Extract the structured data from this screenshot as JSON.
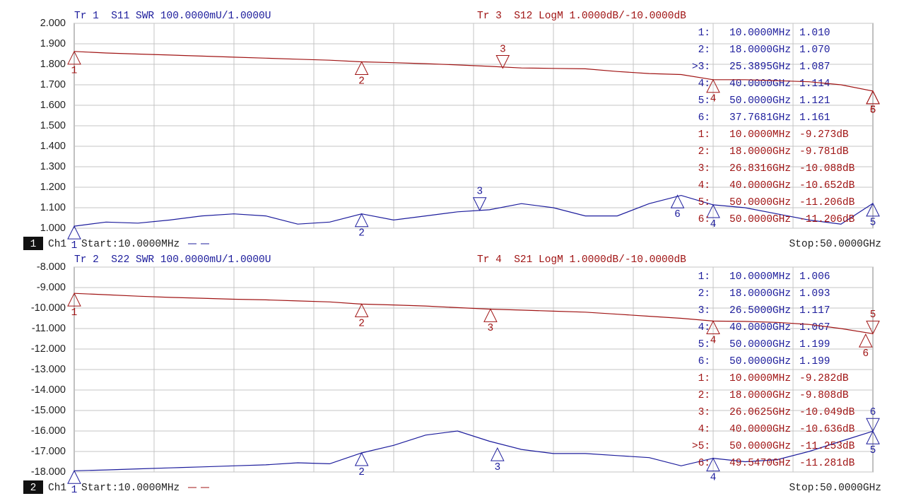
{
  "chart_data": [
    {
      "type": "line",
      "xlim": [
        0.01,
        50
      ],
      "ylim": [
        1,
        2
      ],
      "yticks": [
        {
          "value": 1,
          "label": "1.000"
        },
        {
          "value": 1.1,
          "label": "1.100"
        },
        {
          "value": 1.2,
          "label": "1.200"
        },
        {
          "value": 1.3,
          "label": "1.300"
        },
        {
          "value": 1.4,
          "label": "1.400"
        },
        {
          "value": 1.5,
          "label": "1.500"
        },
        {
          "value": 1.6,
          "label": "1.600"
        },
        {
          "value": 1.7,
          "label": "1.700"
        },
        {
          "value": 1.8,
          "label": "1.800"
        },
        {
          "value": 1.9,
          "label": "1.900"
        },
        {
          "value": 2,
          "label": "2.000"
        }
      ],
      "y2lim": [
        -17.9,
        -7.9
      ],
      "channel": "1",
      "channel_label": "Ch1",
      "start": "Start:10.0000MHz",
      "stop": "Stop:50.0000GHz",
      "x": [
        0.01,
        2,
        4,
        6,
        8,
        10,
        12,
        14,
        16,
        18,
        20,
        22,
        24,
        26,
        28,
        30,
        32,
        34,
        36,
        38,
        40,
        42,
        44,
        46,
        48,
        50
      ],
      "series": [
        {
          "name": "Tr 1  S11 SWR 100.0000mU/1.0000U",
          "color": "#1c1c9c",
          "values": [
            1.01,
            1.03,
            1.025,
            1.04,
            1.06,
            1.07,
            1.06,
            1.02,
            1.03,
            1.07,
            1.04,
            1.06,
            1.08,
            1.09,
            1.12,
            1.1,
            1.06,
            1.06,
            1.12,
            1.16,
            1.114,
            1.1,
            1.07,
            1.04,
            1.02,
            1.121
          ],
          "markers": [
            {
              "id": "1",
              "row_label": "1:",
              "freq": "10.0000MHz",
              "x": 0.01,
              "value": 1.01,
              "value_label": "1.010"
            },
            {
              "id": "2",
              "row_label": "2:",
              "freq": "18.0000GHz",
              "x": 18,
              "value": 1.07,
              "value_label": "1.070"
            },
            {
              "id": "3",
              "row_label": ">3:",
              "freq": "25.3895GHz",
              "x": 25.3895,
              "value": 1.087,
              "value_label": "1.087",
              "active": true
            },
            {
              "id": "4",
              "row_label": "4:",
              "freq": "40.0000GHz",
              "x": 40,
              "value": 1.114,
              "value_label": "1.114"
            },
            {
              "id": "5",
              "row_label": "5:",
              "freq": "50.0000GHz",
              "x": 50,
              "value": 1.121,
              "value_label": "1.121"
            },
            {
              "id": "6",
              "row_label": "6:",
              "freq": "37.7681GHz",
              "x": 37.7681,
              "value": 1.161,
              "value_label": "1.161"
            }
          ]
        },
        {
          "name": "Tr 3  S12 LogM 1.0000dB/-10.0000dB",
          "color": "#a01414",
          "axis": "y2",
          "values": [
            -9.273,
            -9.35,
            -9.4,
            -9.45,
            -9.5,
            -9.55,
            -9.6,
            -9.65,
            -9.7,
            -9.781,
            -9.82,
            -9.87,
            -9.93,
            -10.0,
            -10.08,
            -10.1,
            -10.12,
            -10.25,
            -10.35,
            -10.4,
            -10.652,
            -10.65,
            -10.7,
            -10.75,
            -10.9,
            -11.206
          ],
          "markers": [
            {
              "id": "1",
              "row_label": "1:",
              "freq": "10.0000MHz",
              "x": 0.01,
              "value": -9.273,
              "value_label": "-9.273dB"
            },
            {
              "id": "2",
              "row_label": "2:",
              "freq": "18.0000GHz",
              "x": 18,
              "value": -9.781,
              "value_label": "-9.781dB"
            },
            {
              "id": "3",
              "row_label": "3:",
              "freq": "26.8316GHz",
              "x": 26.8316,
              "value": -10.088,
              "value_label": "-10.088dB",
              "active": true
            },
            {
              "id": "4",
              "row_label": "4:",
              "freq": "40.0000GHz",
              "x": 40,
              "value": -10.652,
              "value_label": "-10.652dB"
            },
            {
              "id": "5",
              "row_label": "5:",
              "freq": "50.0000GHz",
              "x": 50,
              "value": -11.206,
              "value_label": "-11.206dB"
            },
            {
              "id": "6",
              "row_label": "6:",
              "freq": "50.0000GHz",
              "x": 50,
              "value": -11.206,
              "value_label": "-11.206dB"
            }
          ]
        }
      ]
    },
    {
      "type": "line",
      "xlim": [
        0.01,
        50
      ],
      "ylim": [
        -18,
        -8
      ],
      "yticks": [
        {
          "value": -18,
          "label": "-18.000"
        },
        {
          "value": -17,
          "label": "-17.000"
        },
        {
          "value": -16,
          "label": "-16.000"
        },
        {
          "value": -15,
          "label": "-15.000"
        },
        {
          "value": -14,
          "label": "-14.000"
        },
        {
          "value": -13,
          "label": "-13.000"
        },
        {
          "value": -12,
          "label": "-12.000"
        },
        {
          "value": -11,
          "label": "-11.000"
        },
        {
          "value": -10,
          "label": "-10.000"
        },
        {
          "value": -9,
          "label": "-9.000"
        },
        {
          "value": -8,
          "label": "-8.000"
        }
      ],
      "y2lim": [
        1,
        2
      ],
      "channel": "2",
      "channel_label": "Ch1",
      "start": "Start:10.0000MHz",
      "stop": "Stop:50.0000GHz",
      "x": [
        0.01,
        2,
        4,
        6,
        8,
        10,
        12,
        14,
        16,
        18,
        20,
        22,
        24,
        26,
        28,
        30,
        32,
        34,
        36,
        38,
        40,
        42,
        44,
        46,
        48,
        50
      ],
      "series": [
        {
          "name": "Tr 2  S22 SWR 100.0000mU/1.0000U",
          "color": "#1c1c9c",
          "axis": "y2",
          "values": [
            1.006,
            1.01,
            1.015,
            1.02,
            1.025,
            1.03,
            1.035,
            1.045,
            1.04,
            1.093,
            1.13,
            1.18,
            1.2,
            1.15,
            1.11,
            1.09,
            1.09,
            1.08,
            1.07,
            1.03,
            1.067,
            1.05,
            1.06,
            1.1,
            1.15,
            1.199
          ],
          "markers": [
            {
              "id": "1",
              "row_label": "1:",
              "freq": "10.0000MHz",
              "x": 0.01,
              "value": 1.006,
              "value_label": "1.006"
            },
            {
              "id": "2",
              "row_label": "2:",
              "freq": "18.0000GHz",
              "x": 18,
              "value": 1.093,
              "value_label": "1.093"
            },
            {
              "id": "3",
              "row_label": "3:",
              "freq": "26.5000GHz",
              "x": 26.5,
              "value": 1.117,
              "value_label": "1.117"
            },
            {
              "id": "4",
              "row_label": "4:",
              "freq": "40.0000GHz",
              "x": 40,
              "value": 1.067,
              "value_label": "1.067"
            },
            {
              "id": "5",
              "row_label": "5:",
              "freq": "50.0000GHz",
              "x": 50,
              "value": 1.199,
              "value_label": "1.199"
            },
            {
              "id": "6",
              "row_label": "6:",
              "freq": "50.0000GHz",
              "x": 50,
              "value": 1.199,
              "value_label": "1.199",
              "active": true
            }
          ]
        },
        {
          "name": "Tr 4  S21 LogM 1.0000dB/-10.0000dB",
          "color": "#a01414",
          "values": [
            -9.282,
            -9.35,
            -9.42,
            -9.48,
            -9.52,
            -9.57,
            -9.6,
            -9.65,
            -9.7,
            -9.808,
            -9.85,
            -9.9,
            -9.98,
            -10.05,
            -10.1,
            -10.15,
            -10.2,
            -10.3,
            -10.4,
            -10.5,
            -10.636,
            -10.65,
            -10.7,
            -10.8,
            -11.0,
            -11.253
          ],
          "markers": [
            {
              "id": "1",
              "row_label": "1:",
              "freq": "10.0000MHz",
              "x": 0.01,
              "value": -9.282,
              "value_label": "-9.282dB"
            },
            {
              "id": "2",
              "row_label": "2:",
              "freq": "18.0000GHz",
              "x": 18,
              "value": -9.808,
              "value_label": "-9.808dB"
            },
            {
              "id": "3",
              "row_label": "3:",
              "freq": "26.0625GHz",
              "x": 26.0625,
              "value": -10.049,
              "value_label": "-10.049dB"
            },
            {
              "id": "4",
              "row_label": "4:",
              "freq": "40.0000GHz",
              "x": 40,
              "value": -10.636,
              "value_label": "-10.636dB"
            },
            {
              "id": "5",
              "row_label": ">5:",
              "freq": "50.0000GHz",
              "x": 50,
              "value": -11.253,
              "value_label": "-11.253dB",
              "active": true
            },
            {
              "id": "6",
              "row_label": "6:",
              "freq": "49.5470GHz",
              "x": 49.547,
              "value": -11.281,
              "value_label": "-11.281dB"
            }
          ]
        }
      ]
    }
  ]
}
